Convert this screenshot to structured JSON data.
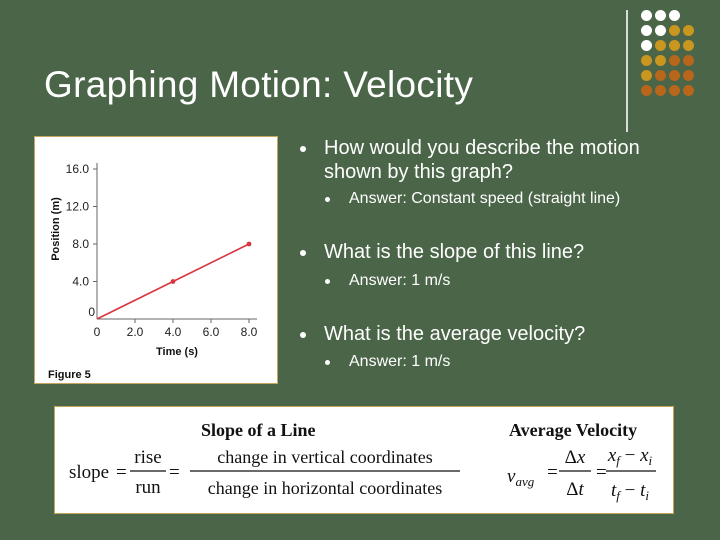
{
  "slide": {
    "title": "Graphing Motion: Velocity"
  },
  "bullets": [
    {
      "question": "How would you describe the motion shown by this graph?",
      "answer": "Answer: Constant speed (straight line)"
    },
    {
      "question": "What is the slope of this line?",
      "answer": "Answer: 1 m/s"
    },
    {
      "question": "What is the average velocity?",
      "answer": "Answer: 1 m/s"
    }
  ],
  "figure": {
    "caption": "Figure 5",
    "chart_data": {
      "type": "line",
      "xlabel": "Time (s)",
      "ylabel": "Position (m)",
      "x_ticks": [
        "0",
        "2.0",
        "4.0",
        "6.0",
        "8.0"
      ],
      "y_ticks": [
        "0",
        "4.0",
        "8.0",
        "12.0",
        "16.0"
      ],
      "xlim": [
        0,
        8
      ],
      "ylim": [
        0,
        16
      ],
      "series": [
        {
          "x": [
            0,
            4,
            8
          ],
          "y": [
            0,
            4,
            8
          ]
        }
      ],
      "line_color": "#d9363e"
    }
  },
  "formulas": {
    "slope_heading": "Slope of a Line",
    "slope_lhs": "slope",
    "rise": "rise",
    "run": "run",
    "vertical": "change in vertical coordinates",
    "horizontal": "change in horizontal coordinates",
    "velocity_heading": "Average Velocity"
  },
  "colors": {
    "background": "#4a6548",
    "dot_grid": [
      "#ffffff",
      "#c9961f",
      "#b8661c"
    ]
  }
}
